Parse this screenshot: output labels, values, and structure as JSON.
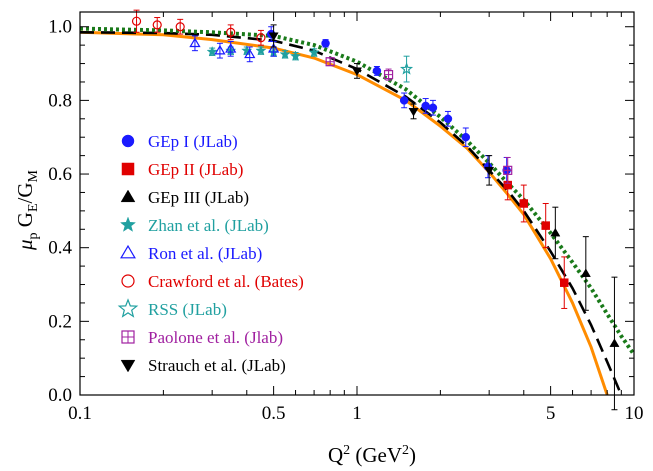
{
  "chart_data": {
    "type": "scatter",
    "title": "",
    "xlabel": {
      "base": "Q",
      "sup1": "2",
      "mid": " (GeV",
      "sup2": "2",
      "end": ")"
    },
    "ylabel": {
      "mu": "μ",
      "mu_sub": "p",
      "g1": " G",
      "g1_sub": "E",
      "slash": "/G",
      "g2_sub": "M"
    },
    "xscale": "log",
    "xlim": [
      0.1,
      10
    ],
    "ylim": [
      0.0,
      1.04
    ],
    "x_ticks": [
      {
        "value": 0.1,
        "label": "0.1"
      },
      {
        "value": 0.5,
        "label": "0.5"
      },
      {
        "value": 1,
        "label": "1"
      },
      {
        "value": 5,
        "label": "5"
      },
      {
        "value": 10,
        "label": "10"
      }
    ],
    "y_ticks": [
      {
        "value": 0.0,
        "label": "0.0"
      },
      {
        "value": 0.2,
        "label": "0.2"
      },
      {
        "value": 0.4,
        "label": "0.4"
      },
      {
        "value": 0.6,
        "label": "0.6"
      },
      {
        "value": 0.8,
        "label": "0.8"
      },
      {
        "value": 1.0,
        "label": "1.0"
      }
    ],
    "grid": false,
    "legend_position": "left",
    "curves": [
      {
        "color": "#ff8c00",
        "style": "solid",
        "x": [
          0.1,
          0.2,
          0.3,
          0.5,
          0.7,
          1.0,
          1.5,
          2.0,
          2.5,
          3.0,
          3.5,
          4.0,
          5.0,
          6.0,
          7.0,
          8.0
        ],
        "y": [
          0.985,
          0.978,
          0.965,
          0.942,
          0.915,
          0.87,
          0.8,
          0.73,
          0.67,
          0.605,
          0.545,
          0.49,
          0.37,
          0.25,
          0.13,
          0.0
        ]
      },
      {
        "color": "#000000",
        "style": "dashed",
        "x": [
          0.1,
          0.2,
          0.3,
          0.5,
          0.7,
          1.0,
          1.5,
          2.0,
          2.5,
          3.0,
          3.5,
          4.0,
          5.0,
          6.0,
          7.0,
          8.0,
          9.0
        ],
        "y": [
          0.985,
          0.983,
          0.978,
          0.962,
          0.935,
          0.885,
          0.81,
          0.74,
          0.675,
          0.61,
          0.555,
          0.5,
          0.39,
          0.29,
          0.19,
          0.09,
          0.0
        ]
      },
      {
        "color": "#1a7a1a",
        "style": "dotted",
        "x": [
          0.1,
          0.2,
          0.3,
          0.5,
          0.7,
          1.0,
          1.5,
          2.0,
          2.5,
          3.0,
          3.5,
          4.0,
          5.0,
          6.0,
          7.0,
          8.0,
          9.0,
          10.0
        ],
        "y": [
          0.995,
          0.99,
          0.985,
          0.975,
          0.95,
          0.905,
          0.83,
          0.755,
          0.69,
          0.63,
          0.575,
          0.53,
          0.44,
          0.36,
          0.29,
          0.22,
          0.16,
          0.11
        ]
      }
    ],
    "series": [
      {
        "name": "GEp I (JLab)",
        "marker": "circle-filled",
        "color": "#1a1aff",
        "label_color": "#1a1aff",
        "points": [
          [
            0.49,
            0.98,
            0.02
          ],
          [
            0.77,
            0.955,
            0.01
          ],
          [
            1.18,
            0.88,
            0.012
          ],
          [
            1.48,
            0.8,
            0.02
          ],
          [
            1.77,
            0.785,
            0.02
          ],
          [
            1.88,
            0.78,
            0.02
          ],
          [
            2.13,
            0.75,
            0.02
          ],
          [
            2.47,
            0.7,
            0.025
          ],
          [
            2.97,
            0.62,
            0.03
          ],
          [
            3.47,
            0.61,
            0.035
          ]
        ]
      },
      {
        "name": "GEp II (JLab)",
        "marker": "square-filled",
        "color": "#e00000",
        "label_color": "#e00000",
        "points": [
          [
            3.5,
            0.57,
            0.04
          ],
          [
            4.0,
            0.52,
            0.05
          ],
          [
            4.8,
            0.46,
            0.06
          ],
          [
            5.6,
            0.305,
            0.07
          ]
        ]
      },
      {
        "name": "GEp III (JLab)",
        "marker": "triangle-up-filled",
        "color": "#000000",
        "label_color": "#000000",
        "points": [
          [
            5.2,
            0.44,
            0.07
          ],
          [
            6.7,
            0.33,
            0.1
          ],
          [
            8.5,
            0.14,
            0.18
          ]
        ]
      },
      {
        "name": "Zhan et al. (JLab)",
        "marker": "star-filled",
        "color": "#20a0a0",
        "label_color": "#20a0a0",
        "points": [
          [
            0.3,
            0.932,
            0.01
          ],
          [
            0.35,
            0.935,
            0.01
          ],
          [
            0.4,
            0.935,
            0.01
          ],
          [
            0.45,
            0.935,
            0.01
          ],
          [
            0.5,
            0.93,
            0.01
          ],
          [
            0.55,
            0.925,
            0.01
          ],
          [
            0.6,
            0.92,
            0.01
          ],
          [
            0.7,
            0.93,
            0.01
          ]
        ]
      },
      {
        "name": "Ron et al. (JLab)",
        "marker": "triangle-up-open",
        "color": "#1a1aff",
        "label_color": "#1a1aff",
        "points": [
          [
            0.26,
            0.955,
            0.02
          ],
          [
            0.32,
            0.935,
            0.02
          ],
          [
            0.35,
            0.94,
            0.02
          ],
          [
            0.41,
            0.925,
            0.02
          ],
          [
            0.5,
            0.94,
            0.02
          ]
        ]
      },
      {
        "name": "Crawford et al. (Bates)",
        "marker": "circle-open",
        "color": "#e00000",
        "label_color": "#e00000",
        "points": [
          [
            0.16,
            1.015,
            0.03
          ],
          [
            0.19,
            1.005,
            0.02
          ],
          [
            0.23,
            1.0,
            0.02
          ],
          [
            0.35,
            0.985,
            0.02
          ],
          [
            0.45,
            0.97,
            0.02
          ]
        ]
      },
      {
        "name": "RSS (JLab)",
        "marker": "star-open",
        "color": "#20a0a0",
        "label_color": "#20a0a0",
        "points": [
          [
            1.51,
            0.885,
            0.035
          ]
        ]
      },
      {
        "name": "Paolone et al. (Jlab)",
        "marker": "square-cross-open",
        "color": "#a020a0",
        "label_color": "#a020a0",
        "points": [
          [
            0.8,
            0.905,
            0.01
          ],
          [
            1.3,
            0.87,
            0.015
          ],
          [
            3.5,
            0.61,
            0.035
          ]
        ]
      },
      {
        "name": "Strauch et al. (JLab)",
        "marker": "triangle-down-filled",
        "color": "#000000",
        "label_color": "#000000",
        "points": [
          [
            0.5,
            0.975,
            0.03
          ],
          [
            1.0,
            0.88,
            0.02
          ],
          [
            1.6,
            0.77,
            0.02
          ],
          [
            3.0,
            0.61,
            0.04
          ]
        ]
      }
    ]
  }
}
